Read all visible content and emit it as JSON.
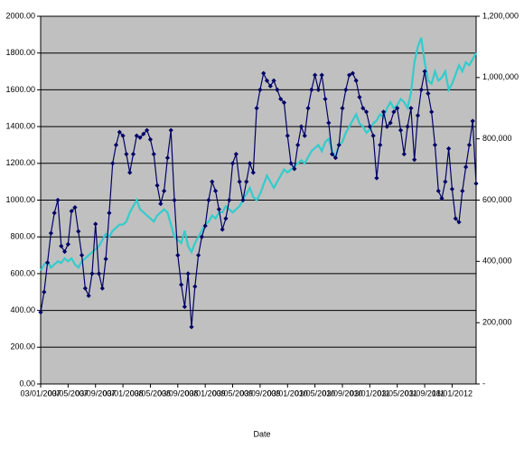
{
  "chart_data": {
    "type": "line",
    "x_label": "Date",
    "categories": [
      "03/01/2007",
      null,
      null,
      null,
      null,
      null,
      null,
      null,
      "03/05/2007",
      null,
      null,
      null,
      null,
      null,
      null,
      null,
      "03/09/2007",
      null,
      null,
      null,
      null,
      null,
      null,
      null,
      "03/01/2008",
      null,
      null,
      null,
      null,
      null,
      null,
      null,
      "03/05/2008",
      null,
      null,
      null,
      null,
      null,
      null,
      null,
      "03/09/2008",
      null,
      null,
      null,
      null,
      null,
      null,
      null,
      "03/01/2009",
      null,
      null,
      null,
      null,
      null,
      null,
      null,
      "03/05/2009",
      null,
      null,
      null,
      null,
      null,
      null,
      null,
      "03/09/2009",
      null,
      null,
      null,
      null,
      null,
      null,
      null,
      "03/01/2010",
      null,
      null,
      null,
      null,
      null,
      null,
      null,
      "03/05/2010",
      null,
      null,
      null,
      null,
      null,
      null,
      null,
      "03/09/2010",
      null,
      null,
      null,
      null,
      null,
      null,
      null,
      "03/01/2011",
      null,
      null,
      null,
      null,
      null,
      null,
      null,
      "03/05/2011",
      null,
      null,
      null,
      null,
      null,
      null,
      null,
      "03/09/2011",
      null,
      null,
      null,
      null,
      null,
      null,
      null,
      "18/01/2012",
      null,
      null,
      null,
      null,
      null,
      null,
      null
    ],
    "series": [
      {
        "color": "#33cccc",
        "axis": "y2",
        "values": [
          370000,
          390000,
          400000,
          380000,
          390000,
          400000,
          395000,
          410000,
          400000,
          410000,
          390000,
          380000,
          400000,
          410000,
          420000,
          430000,
          440000,
          450000,
          470000,
          490000,
          480000,
          500000,
          510000,
          520000,
          520000,
          530000,
          560000,
          580000,
          600000,
          570000,
          560000,
          550000,
          540000,
          530000,
          550000,
          560000,
          570000,
          560000,
          520000,
          480000,
          470000,
          460000,
          500000,
          450000,
          430000,
          460000,
          480000,
          500000,
          520000,
          530000,
          550000,
          540000,
          560000,
          560000,
          580000,
          570000,
          560000,
          570000,
          580000,
          600000,
          620000,
          640000,
          610000,
          600000,
          620000,
          650000,
          680000,
          660000,
          640000,
          660000,
          680000,
          700000,
          690000,
          700000,
          710000,
          720000,
          730000,
          720000,
          740000,
          760000,
          770000,
          780000,
          760000,
          790000,
          800000,
          760000,
          740000,
          780000,
          790000,
          820000,
          840000,
          860000,
          880000,
          850000,
          840000,
          820000,
          830000,
          850000,
          860000,
          880000,
          870000,
          900000,
          920000,
          900000,
          910000,
          930000,
          920000,
          900000,
          950000,
          1050000,
          1100000,
          1130000,
          1050000,
          990000,
          980000,
          1020000,
          990000,
          1000000,
          1020000,
          960000,
          980000,
          1010000,
          1040000,
          1020000,
          1050000,
          1040000,
          1060000,
          1080000
        ]
      },
      {
        "color": "#000066",
        "markers": true,
        "values": [
          390,
          500,
          660,
          820,
          930,
          1000,
          750,
          720,
          760,
          940,
          960,
          830,
          700,
          520,
          480,
          600,
          870,
          600,
          520,
          680,
          930,
          1200,
          1300,
          1370,
          1350,
          1250,
          1150,
          1250,
          1350,
          1340,
          1360,
          1380,
          1330,
          1250,
          1080,
          980,
          1050,
          1230,
          1380,
          1000,
          700,
          540,
          420,
          600,
          310,
          530,
          700,
          800,
          860,
          1000,
          1100,
          1050,
          950,
          840,
          900,
          1000,
          1200,
          1250,
          1100,
          1000,
          1100,
          1200,
          1150,
          1500,
          1600,
          1690,
          1650,
          1620,
          1650,
          1600,
          1550,
          1530,
          1350,
          1200,
          1170,
          1300,
          1400,
          1350,
          1500,
          1600,
          1680,
          1600,
          1680,
          1550,
          1420,
          1250,
          1230,
          1300,
          1500,
          1600,
          1680,
          1690,
          1650,
          1560,
          1500,
          1480,
          1400,
          1350,
          1120,
          1300,
          1480,
          1400,
          1420,
          1480,
          1500,
          1380,
          1250,
          1400,
          1500,
          1220,
          1460,
          1600,
          1700,
          1580,
          1480,
          1300,
          1050,
          1010,
          1100,
          1280,
          1060,
          900,
          880,
          1050,
          1180,
          1300,
          1430,
          1090
        ]
      }
    ],
    "ylim": [
      0,
      2000
    ],
    "yticks": [
      {
        "value": 0,
        "label": "0.00"
      },
      {
        "value": 200,
        "label": "200.00"
      },
      {
        "value": 400,
        "label": "400.00"
      },
      {
        "value": 600,
        "label": "600.00"
      },
      {
        "value": 800,
        "label": "800.00"
      },
      {
        "value": 1000,
        "label": "1000.00"
      },
      {
        "value": 1200,
        "label": "1200.00"
      },
      {
        "value": 1400,
        "label": "1400.00"
      },
      {
        "value": 1600,
        "label": "1600.00"
      },
      {
        "value": 1800,
        "label": "1800.00"
      },
      {
        "value": 2000,
        "label": "2000.00"
      }
    ],
    "y2lim": [
      0,
      1200000
    ],
    "y2ticks": [
      {
        "value": 0,
        "label": "-"
      },
      {
        "value": 200000,
        "label": "200,000"
      },
      {
        "value": 400000,
        "label": "400,000"
      },
      {
        "value": 600000,
        "label": "600,000"
      },
      {
        "value": 800000,
        "label": "800,000"
      },
      {
        "value": 1000000,
        "label": "1,000,000"
      },
      {
        "value": 1200000,
        "label": "1,200,000"
      }
    ],
    "grid": true,
    "plot_color": "#c0c0c0"
  }
}
